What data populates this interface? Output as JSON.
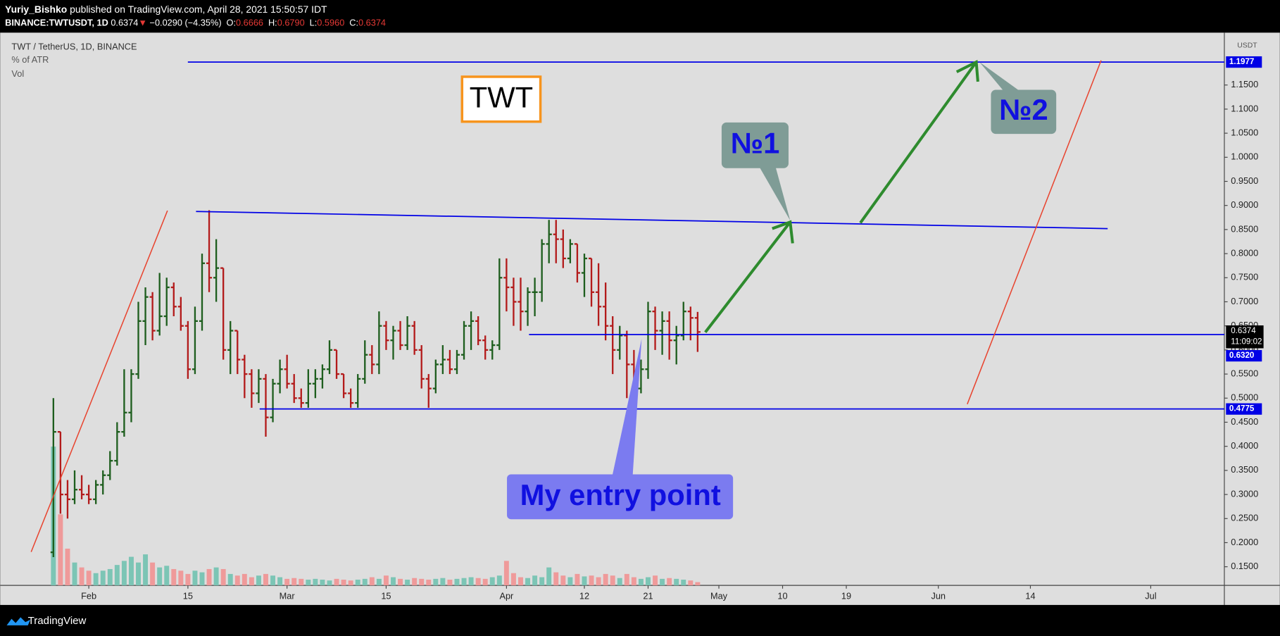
{
  "header": {
    "author": "Yuriy_Bishko",
    "published": "published on TradingView.com, April 28, 2021 15:50:57 IDT",
    "symbol": "BINANCE:TWTUSDT, 1D",
    "last": "0.6374",
    "arrow": "▼",
    "change": "−0.0290 (−4.35%)",
    "ohlc": [
      {
        "key": "O:",
        "value": "0.6666"
      },
      {
        "key": "H:",
        "value": "0.6790"
      },
      {
        "key": "L:",
        "value": "0.5960"
      },
      {
        "key": "C:",
        "value": "0.6374"
      }
    ]
  },
  "legend": [
    "TWT / TetherUS, 1D, BINANCE",
    "% of ATR",
    "Vol"
  ],
  "annotations": {
    "title_box": "TWT",
    "target1": "№1",
    "target2": "№2",
    "entry": "My entry point"
  },
  "footer": "TradingView",
  "chart_data": {
    "type": "ohlc",
    "unit": "USDT",
    "countdown": "11:09:02",
    "x": [
      27,
      28,
      29,
      30,
      31,
      32,
      33,
      34,
      35,
      36,
      37,
      38,
      39,
      40,
      41,
      42,
      43,
      44,
      45,
      46,
      47,
      48,
      49,
      50,
      51,
      52,
      53,
      54,
      55,
      56,
      57,
      58,
      59,
      60,
      61,
      62,
      63,
      64,
      65,
      66,
      67,
      68,
      69,
      70,
      71,
      72,
      73,
      74,
      75,
      76,
      77,
      78,
      79,
      80,
      81,
      82,
      83,
      84,
      85,
      86,
      87,
      88,
      89,
      90,
      91,
      92,
      93,
      94,
      95,
      96,
      97,
      98,
      99,
      100,
      101,
      102,
      103,
      104,
      105,
      106,
      107,
      108,
      109,
      110,
      111,
      112,
      113,
      114,
      115,
      116,
      117,
      118
    ],
    "open": [
      0.18,
      0.43,
      0.3,
      0.29,
      0.31,
      0.3,
      0.29,
      0.32,
      0.34,
      0.37,
      0.43,
      0.47,
      0.55,
      0.66,
      0.71,
      0.64,
      0.67,
      0.73,
      0.69,
      0.65,
      0.56,
      0.66,
      0.78,
      0.75,
      0.77,
      0.6,
      0.64,
      0.58,
      0.55,
      0.51,
      0.54,
      0.46,
      0.53,
      0.56,
      0.53,
      0.5,
      0.49,
      0.53,
      0.54,
      0.56,
      0.6,
      0.55,
      0.51,
      0.49,
      0.54,
      0.59,
      0.57,
      0.65,
      0.62,
      0.64,
      0.61,
      0.65,
      0.6,
      0.54,
      0.52,
      0.57,
      0.58,
      0.56,
      0.59,
      0.65,
      0.66,
      0.62,
      0.6,
      0.61,
      0.75,
      0.73,
      0.7,
      0.68,
      0.72,
      0.72,
      0.82,
      0.84,
      0.83,
      0.79,
      0.82,
      0.76,
      0.79,
      0.72,
      0.69,
      0.65,
      0.6,
      0.63,
      0.57,
      0.52,
      0.56,
      0.68,
      0.64,
      0.66,
      0.62,
      0.63,
      0.68,
      0.6666
    ],
    "high": [
      0.5,
      0.43,
      0.33,
      0.35,
      0.34,
      0.32,
      0.33,
      0.35,
      0.39,
      0.45,
      0.56,
      0.56,
      0.7,
      0.73,
      0.72,
      0.76,
      0.75,
      0.74,
      0.71,
      0.66,
      0.69,
      0.8,
      0.89,
      0.83,
      0.77,
      0.66,
      0.64,
      0.59,
      0.56,
      0.56,
      0.55,
      0.54,
      0.58,
      0.59,
      0.55,
      0.52,
      0.56,
      0.56,
      0.57,
      0.62,
      0.6,
      0.55,
      0.52,
      0.55,
      0.62,
      0.61,
      0.68,
      0.66,
      0.65,
      0.66,
      0.67,
      0.66,
      0.61,
      0.55,
      0.58,
      0.61,
      0.6,
      0.6,
      0.66,
      0.68,
      0.67,
      0.63,
      0.62,
      0.79,
      0.79,
      0.75,
      0.75,
      0.73,
      0.75,
      0.83,
      0.87,
      0.87,
      0.85,
      0.83,
      0.82,
      0.8,
      0.79,
      0.78,
      0.74,
      0.67,
      0.65,
      0.64,
      0.6,
      0.58,
      0.7,
      0.69,
      0.68,
      0.68,
      0.65,
      0.7,
      0.69,
      0.679
    ],
    "low": [
      0.17,
      0.26,
      0.25,
      0.28,
      0.29,
      0.28,
      0.28,
      0.3,
      0.33,
      0.36,
      0.42,
      0.45,
      0.54,
      0.61,
      0.62,
      0.63,
      0.65,
      0.67,
      0.64,
      0.54,
      0.55,
      0.64,
      0.72,
      0.7,
      0.58,
      0.55,
      0.55,
      0.5,
      0.48,
      0.49,
      0.42,
      0.45,
      0.51,
      0.52,
      0.49,
      0.48,
      0.48,
      0.5,
      0.52,
      0.55,
      0.54,
      0.5,
      0.48,
      0.48,
      0.53,
      0.55,
      0.55,
      0.6,
      0.58,
      0.6,
      0.6,
      0.59,
      0.52,
      0.48,
      0.51,
      0.55,
      0.55,
      0.55,
      0.58,
      0.6,
      0.61,
      0.58,
      0.58,
      0.6,
      0.68,
      0.65,
      0.64,
      0.65,
      0.67,
      0.7,
      0.78,
      0.78,
      0.77,
      0.78,
      0.74,
      0.71,
      0.69,
      0.65,
      0.62,
      0.55,
      0.58,
      0.5,
      0.51,
      0.51,
      0.54,
      0.6,
      0.59,
      0.58,
      0.57,
      0.62,
      0.62,
      0.596
    ],
    "close": [
      0.43,
      0.3,
      0.29,
      0.31,
      0.3,
      0.29,
      0.32,
      0.34,
      0.37,
      0.43,
      0.47,
      0.55,
      0.66,
      0.71,
      0.64,
      0.67,
      0.73,
      0.69,
      0.65,
      0.56,
      0.66,
      0.78,
      0.75,
      0.77,
      0.6,
      0.64,
      0.58,
      0.55,
      0.51,
      0.54,
      0.46,
      0.53,
      0.56,
      0.53,
      0.5,
      0.49,
      0.53,
      0.54,
      0.56,
      0.6,
      0.55,
      0.51,
      0.49,
      0.54,
      0.59,
      0.57,
      0.65,
      0.62,
      0.64,
      0.61,
      0.65,
      0.6,
      0.54,
      0.52,
      0.57,
      0.58,
      0.56,
      0.59,
      0.65,
      0.66,
      0.62,
      0.6,
      0.61,
      0.75,
      0.73,
      0.7,
      0.68,
      0.72,
      0.72,
      0.82,
      0.84,
      0.83,
      0.79,
      0.82,
      0.76,
      0.79,
      0.72,
      0.69,
      0.65,
      0.6,
      0.63,
      0.57,
      0.52,
      0.56,
      0.68,
      0.64,
      0.66,
      0.62,
      0.63,
      0.68,
      0.6666,
      0.6374
    ],
    "volume": [
      170,
      87,
      45,
      28,
      22,
      18,
      15,
      18,
      20,
      25,
      30,
      35,
      28,
      38,
      28,
      22,
      24,
      20,
      18,
      14,
      18,
      16,
      20,
      22,
      20,
      14,
      12,
      14,
      10,
      12,
      14,
      12,
      10,
      8,
      9,
      8,
      7,
      8,
      7,
      6,
      8,
      7,
      6,
      7,
      8,
      10,
      8,
      12,
      10,
      8,
      7,
      9,
      8,
      7,
      8,
      9,
      7,
      8,
      9,
      10,
      9,
      8,
      10,
      12,
      30,
      15,
      10,
      9,
      12,
      10,
      22,
      16,
      12,
      10,
      14,
      11,
      12,
      10,
      14,
      12,
      9,
      14,
      10,
      8,
      10,
      12,
      8,
      9,
      8,
      7,
      6,
      4
    ],
    "up_color": "#1e5e1e",
    "down_color": "#b31b1b",
    "vol_up_color": "#7cc5b5",
    "vol_down_color": "#ef9a9a",
    "level_color": "#0000e6",
    "levels": [
      1.1977,
      {
        "value": 0.632,
        "label": "0.6320"
      },
      0.4775
    ],
    "xlim": [
      20.4,
      192.4
    ],
    "xticks": [
      {
        "value": 32,
        "label": "Feb"
      },
      {
        "value": 46,
        "label": "15"
      },
      {
        "value": 60,
        "label": "Mar"
      },
      {
        "value": 74,
        "label": "15"
      },
      {
        "value": 91,
        "label": "Apr"
      },
      {
        "value": 102,
        "label": "12"
      },
      {
        "value": 111,
        "label": "21"
      },
      {
        "value": 121,
        "label": "May"
      },
      {
        "value": 130,
        "label": "10"
      },
      {
        "value": 139,
        "label": "19"
      },
      {
        "value": 152,
        "label": "Jun"
      },
      {
        "value": 165,
        "label": "14"
      },
      {
        "value": 182,
        "label": "Jul"
      }
    ],
    "ylim": [
      0.1113,
      1.2587
    ],
    "yticks": [
      {
        "value": 0.15,
        "label": "0.1500"
      },
      {
        "value": 0.2,
        "label": "0.2000"
      },
      {
        "value": 0.25,
        "label": "0.2500"
      },
      {
        "value": 0.3,
        "label": "0.3000"
      },
      {
        "value": 0.35,
        "label": "0.3500"
      },
      {
        "value": 0.4,
        "label": "0.4000"
      },
      {
        "value": 0.45,
        "label": "0.4500"
      },
      {
        "value": 0.5,
        "label": "0.5000"
      },
      {
        "value": 0.55,
        "label": "0.5500"
      },
      {
        "value": 0.6,
        "label": "0.6000"
      },
      {
        "value": 0.65,
        "label": "0.6500"
      },
      {
        "value": 0.7,
        "label": "0.7000"
      },
      {
        "value": 0.75,
        "label": "0.7500"
      },
      {
        "value": 0.8,
        "label": "0.8000"
      },
      {
        "value": 0.85,
        "label": "0.8500"
      },
      {
        "value": 0.9,
        "label": "0.9000"
      },
      {
        "value": 0.95,
        "label": "0.9500"
      },
      {
        "value": 1.0,
        "label": "1.0000"
      },
      {
        "value": 1.05,
        "label": "1.0500"
      },
      {
        "value": 1.1,
        "label": "1.1000"
      },
      {
        "value": 1.15,
        "label": "1.1500"
      }
    ]
  }
}
